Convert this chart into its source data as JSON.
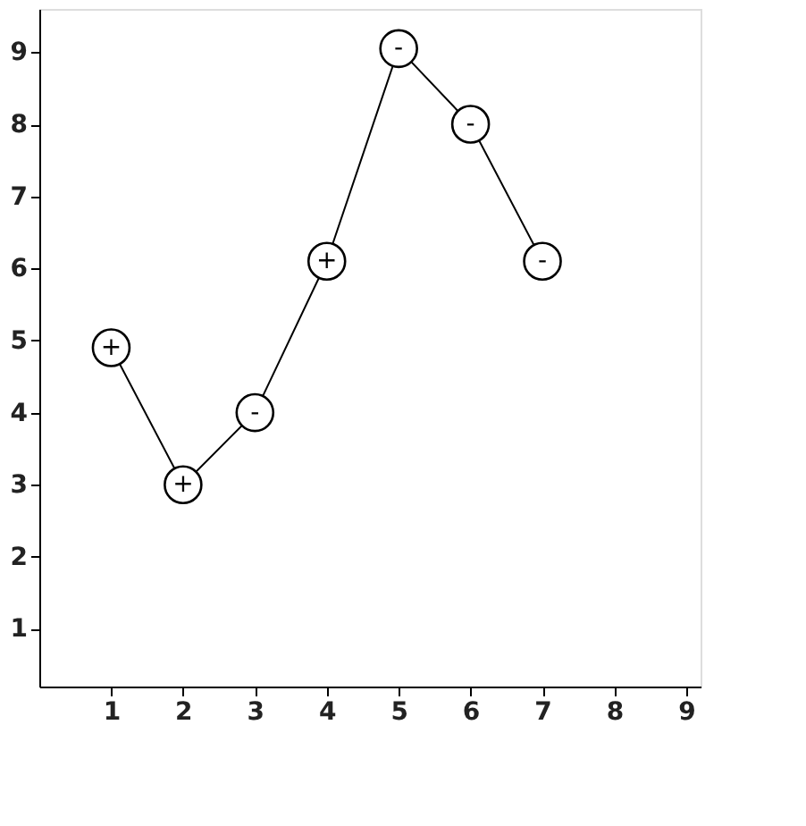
{
  "chart_data": {
    "type": "line",
    "x": [
      1,
      2,
      3,
      4,
      5,
      6,
      7
    ],
    "series": [
      {
        "color": "#000000",
        "values": [
          4.9,
          3.0,
          4.0,
          6.1,
          9.05,
          8.0,
          6.1
        ]
      }
    ],
    "xlim": [
      0,
      9.2
    ],
    "xticks": [
      1,
      2,
      3,
      4,
      5,
      6,
      7,
      8,
      9
    ],
    "ylim": [
      0.2,
      9.6
    ],
    "yticks": [
      1,
      2,
      3,
      4,
      5,
      6,
      7,
      8,
      9
    ],
    "grid": false,
    "marker": "circle",
    "line_style": "solid",
    "annotations": [
      {
        "text": "+",
        "x": 1,
        "y": 4.9
      },
      {
        "text": "+",
        "x": 2,
        "y": 3.0
      },
      {
        "text": "-",
        "x": 3,
        "y": 4.0
      },
      {
        "text": "+",
        "x": 4,
        "y": 6.1
      },
      {
        "text": "-",
        "x": 5,
        "y": 9.05
      },
      {
        "text": "-",
        "x": 6,
        "y": 8.0
      },
      {
        "text": "-",
        "x": 7,
        "y": 6.1
      }
    ]
  }
}
